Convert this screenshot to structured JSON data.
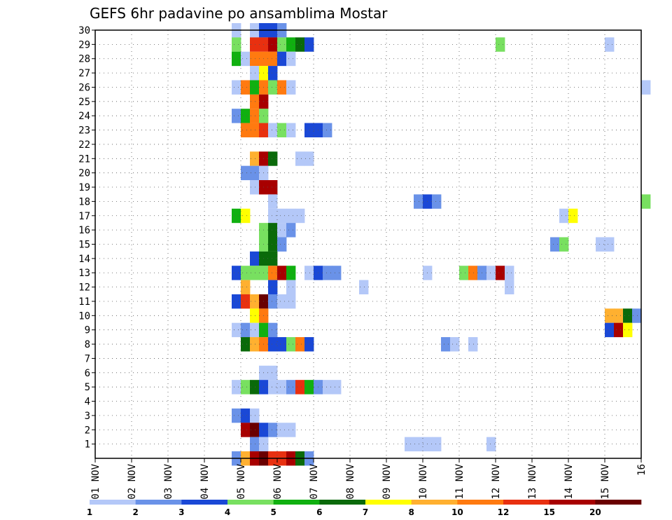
{
  "chart_data": {
    "type": "heatmap",
    "title": "GEFS 6hr padavine po ansamblima Mostar",
    "xlabel": "",
    "ylabel": "",
    "x_tick_labels": [
      "01 NOV",
      "02 NOV",
      "03 NOV",
      "04 NOV",
      "05 NOV",
      "06 NOV",
      "07 NOV",
      "08 NOV",
      "09 NOV",
      "10 NOV",
      "11 NOV",
      "12 NOV",
      "13 NOV",
      "14 NOV",
      "15 NOV",
      "16"
    ],
    "y_tick_labels": [
      "1",
      "2",
      "3",
      "4",
      "5",
      "6",
      "7",
      "8",
      "9",
      "10",
      "11",
      "12",
      "13",
      "14",
      "15",
      "16",
      "17",
      "18",
      "19",
      "20",
      "21",
      "22",
      "23",
      "24",
      "25",
      "26",
      "27",
      "28",
      "29",
      "30"
    ],
    "xlim_days": [
      1,
      16
    ],
    "ylim_members": [
      0,
      30
    ],
    "step_days": 0.25,
    "grid": "dotted",
    "colorbar": {
      "placement": "bottom",
      "labels": [
        "1",
        "2",
        "3",
        "4",
        "5",
        "6",
        "7",
        "8",
        "10",
        "12",
        "15",
        "20"
      ],
      "colors": [
        "#b4c8f8",
        "#6a92e8",
        "#1a48d6",
        "#78e060",
        "#10b010",
        "#0a6a0a",
        "#ffff00",
        "#ffb030",
        "#ff7a10",
        "#e83010",
        "#a80000",
        "#6a0000"
      ]
    },
    "cells": [
      [
        4.75,
        30,
        1
      ],
      [
        5.25,
        30,
        1
      ],
      [
        5.5,
        30,
        3
      ],
      [
        5.75,
        30,
        3
      ],
      [
        6,
        30,
        2
      ],
      [
        4.75,
        29,
        4
      ],
      [
        5.25,
        29,
        10
      ],
      [
        5.5,
        29,
        10
      ],
      [
        5.75,
        29,
        11
      ],
      [
        6,
        29,
        4
      ],
      [
        6.25,
        29,
        5
      ],
      [
        6.5,
        29,
        6
      ],
      [
        6.75,
        29,
        3
      ],
      [
        12,
        29,
        4
      ],
      [
        15,
        29,
        1
      ],
      [
        4.75,
        28,
        5
      ],
      [
        5,
        28,
        1
      ],
      [
        5.25,
        28,
        9
      ],
      [
        5.5,
        28,
        9
      ],
      [
        5.75,
        28,
        9
      ],
      [
        6,
        28,
        3
      ],
      [
        6.25,
        28,
        1
      ],
      [
        5.25,
        27,
        1
      ],
      [
        5.5,
        27,
        7
      ],
      [
        5.75,
        27,
        3
      ],
      [
        4.75,
        26,
        1
      ],
      [
        5,
        26,
        9
      ],
      [
        5.25,
        26,
        5
      ],
      [
        5.5,
        26,
        9
      ],
      [
        5.75,
        26,
        4
      ],
      [
        6,
        26,
        9
      ],
      [
        6.25,
        26,
        1
      ],
      [
        16,
        26,
        1
      ],
      [
        5.25,
        25,
        9
      ],
      [
        5.5,
        25,
        11
      ],
      [
        4.75,
        24,
        2
      ],
      [
        5,
        24,
        5
      ],
      [
        5.25,
        24,
        9
      ],
      [
        5.5,
        24,
        4
      ],
      [
        5,
        23,
        9
      ],
      [
        5.25,
        23,
        9
      ],
      [
        5.5,
        23,
        10
      ],
      [
        5.75,
        23,
        1
      ],
      [
        6,
        23,
        4
      ],
      [
        6.25,
        23,
        1
      ],
      [
        6.75,
        23,
        3
      ],
      [
        7,
        23,
        3
      ],
      [
        7.25,
        23,
        2
      ],
      [
        5.25,
        21,
        8
      ],
      [
        5.5,
        21,
        11
      ],
      [
        5.75,
        21,
        6
      ],
      [
        6.5,
        21,
        1
      ],
      [
        6.75,
        21,
        1
      ],
      [
        5,
        20,
        2
      ],
      [
        5.25,
        20,
        2
      ],
      [
        5.5,
        20,
        1
      ],
      [
        5.25,
        19,
        1
      ],
      [
        5.5,
        19,
        11
      ],
      [
        5.75,
        19,
        11
      ],
      [
        5.75,
        18,
        1
      ],
      [
        9.75,
        18,
        2
      ],
      [
        10,
        18,
        3
      ],
      [
        10.25,
        18,
        2
      ],
      [
        16,
        18,
        4
      ],
      [
        4.75,
        17,
        5
      ],
      [
        5,
        17,
        7
      ],
      [
        5.75,
        17,
        1
      ],
      [
        6,
        17,
        1
      ],
      [
        6.25,
        17,
        1
      ],
      [
        6.5,
        17,
        1
      ],
      [
        13.75,
        17,
        1
      ],
      [
        14,
        17,
        7
      ],
      [
        5.5,
        16,
        4
      ],
      [
        5.75,
        16,
        6
      ],
      [
        6,
        16,
        1
      ],
      [
        6.25,
        16,
        2
      ],
      [
        5.5,
        15,
        4
      ],
      [
        5.75,
        15,
        6
      ],
      [
        6,
        15,
        2
      ],
      [
        13.5,
        15,
        2
      ],
      [
        13.75,
        15,
        4
      ],
      [
        14.75,
        15,
        1
      ],
      [
        15,
        15,
        1
      ],
      [
        5.25,
        14,
        3
      ],
      [
        5.5,
        14,
        6
      ],
      [
        5.75,
        14,
        6
      ],
      [
        4.75,
        13,
        3
      ],
      [
        5,
        13,
        4
      ],
      [
        5.25,
        13,
        4
      ],
      [
        5.5,
        13,
        4
      ],
      [
        5.75,
        13,
        9
      ],
      [
        6,
        13,
        11
      ],
      [
        6.25,
        13,
        5
      ],
      [
        6.75,
        13,
        1
      ],
      [
        7,
        13,
        3
      ],
      [
        7.25,
        13,
        2
      ],
      [
        7.5,
        13,
        2
      ],
      [
        10,
        13,
        1
      ],
      [
        11,
        13,
        4
      ],
      [
        11.25,
        13,
        9
      ],
      [
        11.5,
        13,
        2
      ],
      [
        11.75,
        13,
        1
      ],
      [
        12,
        13,
        11
      ],
      [
        12.25,
        13,
        1
      ],
      [
        5,
        12,
        8
      ],
      [
        5.75,
        12,
        3
      ],
      [
        6.25,
        12,
        1
      ],
      [
        8.25,
        12,
        1
      ],
      [
        12.25,
        12,
        1
      ],
      [
        4.75,
        11,
        3
      ],
      [
        5,
        11,
        10
      ],
      [
        5.25,
        11,
        8
      ],
      [
        5.5,
        11,
        12
      ],
      [
        5.75,
        11,
        2
      ],
      [
        6,
        11,
        1
      ],
      [
        6.25,
        11,
        1
      ],
      [
        5.25,
        10,
        7
      ],
      [
        5.5,
        10,
        9
      ],
      [
        15,
        10,
        8
      ],
      [
        15.25,
        10,
        8
      ],
      [
        15.5,
        10,
        6
      ],
      [
        15.75,
        10,
        2
      ],
      [
        4.75,
        9,
        1
      ],
      [
        5,
        9,
        2
      ],
      [
        5.25,
        9,
        1
      ],
      [
        5.5,
        9,
        5
      ],
      [
        5.75,
        9,
        2
      ],
      [
        15,
        9,
        3
      ],
      [
        15.25,
        9,
        11
      ],
      [
        15.5,
        9,
        7
      ],
      [
        5,
        8,
        6
      ],
      [
        5.25,
        8,
        8
      ],
      [
        5.5,
        8,
        9
      ],
      [
        5.75,
        8,
        3
      ],
      [
        6,
        8,
        3
      ],
      [
        6.25,
        8,
        4
      ],
      [
        6.5,
        8,
        9
      ],
      [
        6.75,
        8,
        3
      ],
      [
        10.5,
        8,
        2
      ],
      [
        10.75,
        8,
        1
      ],
      [
        11.25,
        8,
        1
      ],
      [
        5.5,
        6,
        1
      ],
      [
        5.75,
        6,
        1
      ],
      [
        4.75,
        5,
        1
      ],
      [
        5,
        5,
        4
      ],
      [
        5.25,
        5,
        6
      ],
      [
        5.5,
        5,
        3
      ],
      [
        5.75,
        5,
        1
      ],
      [
        6,
        5,
        1
      ],
      [
        6.25,
        5,
        2
      ],
      [
        6.5,
        5,
        10
      ],
      [
        6.75,
        5,
        5
      ],
      [
        7,
        5,
        2
      ],
      [
        7.25,
        5,
        1
      ],
      [
        7.5,
        5,
        1
      ],
      [
        4.75,
        3,
        2
      ],
      [
        5,
        3,
        3
      ],
      [
        5.25,
        3,
        1
      ],
      [
        5,
        2,
        11
      ],
      [
        5.25,
        2,
        12
      ],
      [
        5.5,
        2,
        3
      ],
      [
        5.75,
        2,
        2
      ],
      [
        6,
        2,
        1
      ],
      [
        6.25,
        2,
        1
      ],
      [
        5.25,
        1,
        2
      ],
      [
        5.5,
        1,
        1
      ],
      [
        9.5,
        1,
        1
      ],
      [
        9.75,
        1,
        1
      ],
      [
        10,
        1,
        1
      ],
      [
        10.25,
        1,
        1
      ],
      [
        11.75,
        1,
        1
      ],
      [
        4.75,
        0,
        2
      ],
      [
        5,
        0,
        8
      ],
      [
        5.25,
        0,
        11
      ],
      [
        5.5,
        0,
        12
      ],
      [
        5.75,
        0,
        10
      ],
      [
        6,
        0,
        10
      ],
      [
        6.25,
        0,
        11
      ],
      [
        6.5,
        0,
        6
      ],
      [
        6.75,
        0,
        2
      ]
    ]
  }
}
